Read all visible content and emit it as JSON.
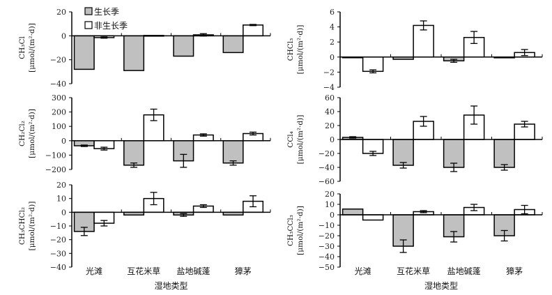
{
  "chart_data": {
    "type": "bar",
    "categories": [
      "光滩",
      "互花米草",
      "盐地碱蓬",
      "獐茅"
    ],
    "xlabel": "湿地类型",
    "legend": [
      "生长季",
      "非生长季"
    ],
    "legend_placement": "top-left of first panel",
    "colors": {
      "growing": "#c0c0c0",
      "non_growing": "#ffffff"
    },
    "panels": [
      {
        "name": "CH₃Cl",
        "unit": "[μmol/(m²·d)]",
        "ylim": [
          -40,
          20
        ],
        "step": 20,
        "series": [
          {
            "name": "生长季",
            "values": [
              -28,
              -29,
              -17,
              -14
            ],
            "errors": [
              0,
              0,
              0,
              0
            ]
          },
          {
            "name": "非生长季",
            "values": [
              -1.5,
              0.3,
              0.8,
              9
            ],
            "errors": [
              0.5,
              0,
              1,
              0.5
            ]
          }
        ]
      },
      {
        "name": "CHCl₃",
        "unit": "[μmol/(m²·d)]",
        "ylim": [
          -4,
          6
        ],
        "step": 2,
        "series": [
          {
            "name": "生长季",
            "values": [
              0,
              -0.3,
              -0.5,
              -0.1
            ],
            "errors": [
              0,
              0,
              0.2,
              0
            ]
          },
          {
            "name": "非生长季",
            "values": [
              -1.9,
              4.2,
              2.6,
              0.6
            ],
            "errors": [
              0.2,
              0.6,
              0.8,
              0.4
            ]
          }
        ]
      },
      {
        "name": "CH₂Cl₂",
        "unit": "[μmol/(m²·d)]",
        "ylim": [
          -200,
          300
        ],
        "step": 100,
        "series": [
          {
            "name": "生长季",
            "values": [
              -35,
              -170,
              -140,
              -155
            ],
            "errors": [
              5,
              15,
              45,
              15
            ]
          },
          {
            "name": "非生长季",
            "values": [
              -55,
              180,
              40,
              50
            ],
            "errors": [
              10,
              40,
              8,
              10
            ]
          }
        ]
      },
      {
        "name": "CCl₄",
        "unit": "[μmol/(m²·d)]",
        "ylim": [
          -60,
          60
        ],
        "step": 20,
        "series": [
          {
            "name": "生长季",
            "values": [
              3,
              -37,
              -40,
              -40
            ],
            "errors": [
              1,
              4,
              6,
              4
            ]
          },
          {
            "name": "非生长季",
            "values": [
              -20,
              26,
              35,
              22
            ],
            "errors": [
              3,
              7,
              13,
              4
            ]
          }
        ]
      },
      {
        "name": "CH₃CHCl₂",
        "unit": "[μmol/(m²·d)]",
        "ylim": [
          -40,
          20
        ],
        "step": 10,
        "series": [
          {
            "name": "生长季",
            "values": [
              -14,
              -2,
              -2,
              -2
            ],
            "errors": [
              3,
              0,
              1,
              0
            ]
          },
          {
            "name": "非生长季",
            "values": [
              -8,
              10,
              4.5,
              8
            ],
            "errors": [
              2,
              4.5,
              1,
              4
            ]
          }
        ]
      },
      {
        "name": "CH₃CCl₃",
        "unit": "[μmol/(m²·d)]",
        "ylim": [
          -50,
          20
        ],
        "step": 10,
        "series": [
          {
            "name": "生长季",
            "values": [
              5.5,
              -30,
              -21,
              -20
            ],
            "errors": [
              0,
              6,
              5,
              5
            ]
          },
          {
            "name": "非生长季",
            "values": [
              -5,
              3,
              7,
              5
            ],
            "errors": [
              0,
              1,
              3,
              4
            ]
          }
        ]
      }
    ]
  }
}
